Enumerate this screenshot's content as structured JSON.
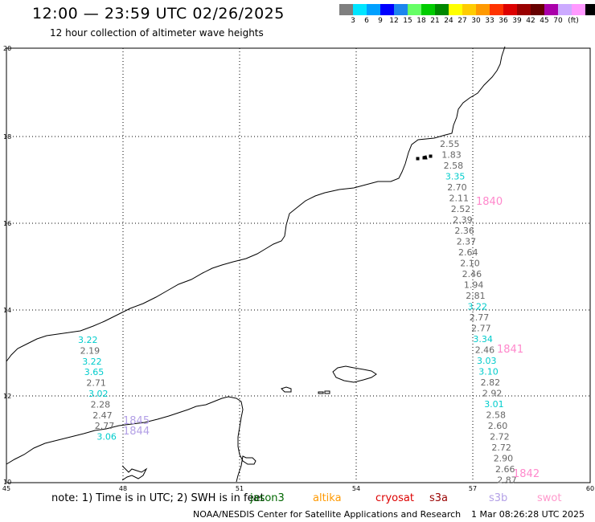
{
  "header": {
    "title": "12:00 — 23:59 UTC 02/26/2025",
    "subtitle": "12 hour collection of altimeter wave heights"
  },
  "colorbar": {
    "colors": [
      "#7f7f7f",
      "#00e5ff",
      "#00a0ff",
      "#0000ff",
      "#1c86ee",
      "#66ff66",
      "#00cc00",
      "#008800",
      "#ffff00",
      "#ffcc00",
      "#ff9900",
      "#ff3300",
      "#dd0000",
      "#990000",
      "#660000",
      "#aa00aa",
      "#ccaaff",
      "#ff99ff",
      "#000000"
    ],
    "labels": [
      "3",
      "6",
      "9",
      "12",
      "15",
      "18",
      "21",
      "24",
      "27",
      "30",
      "33",
      "36",
      "39",
      "42",
      "45",
      "70",
      "(ft)"
    ]
  },
  "axes": {
    "x_ticks": [
      "45",
      "48",
      "51",
      "54",
      "57",
      "60"
    ],
    "y_ticks": [
      "10",
      "12",
      "14",
      "16",
      "18",
      "20"
    ]
  },
  "left_track": {
    "color_map": [
      "#00cccc",
      "#666666",
      "#00cccc",
      "#00cccc",
      "#666666",
      "#00cccc",
      "#666666",
      "#666666",
      "#666666",
      "#00cccc"
    ],
    "values": [
      "3.22",
      "2.19",
      "3.22",
      "3.65",
      "2.71",
      "3.02",
      "2.28",
      "2.47",
      "2.77",
      "3.06"
    ],
    "labels": [
      {
        "text": "1845",
        "color": "#b3a0e6"
      },
      {
        "text": "1844",
        "color": "#b3a0e6"
      }
    ]
  },
  "right_track": {
    "color_map": [
      "#666666",
      "#666666",
      "#666666",
      "#00cccc",
      "#666666",
      "#666666",
      "#666666",
      "#666666",
      "#666666",
      "#666666",
      "#666666",
      "#666666",
      "#666666",
      "#666666",
      "#666666",
      "#00cccc",
      "#666666",
      "#666666",
      "#00cccc",
      "#666666",
      "#00cccc",
      "#00cccc",
      "#666666",
      "#666666",
      "#00cccc",
      "#666666",
      "#666666",
      "#666666",
      "#666666",
      "#666666",
      "#666666",
      "#666666"
    ],
    "values": [
      "2.55",
      "1.83",
      "2.58",
      "3.35",
      "2.70",
      "2.11",
      "2.52",
      "2.39",
      "2.36",
      "2.37",
      "2.64",
      "2.10",
      "2.46",
      "1.94",
      "2.81",
      "3.22",
      "2.77",
      "2.77",
      "3.34",
      "2.46",
      "3.03",
      "3.10",
      "2.82",
      "2.92",
      "3.01",
      "2.58",
      "2.60",
      "2.72",
      "2.72",
      "2.90",
      "2.66",
      "2.87"
    ],
    "labels": [
      {
        "text": "1840",
        "color": "#ff88cc"
      },
      {
        "text": "1841",
        "color": "#ff88cc"
      },
      {
        "text": "1842",
        "color": "#ff88cc"
      }
    ]
  },
  "footer": {
    "note": "note: 1) Time is in UTC; 2) SWH is in feet",
    "satellites": [
      {
        "name": "jason3",
        "color": "#006600"
      },
      {
        "name": "altika",
        "color": "#ff9900"
      },
      {
        "name": "cryosat",
        "color": "#dd0000"
      },
      {
        "name": "s3a",
        "color": "#990000"
      },
      {
        "name": "s3b",
        "color": "#b3a0e6"
      },
      {
        "name": "swot",
        "color": "#ff99cc"
      }
    ],
    "credit": "NOAA/NESDIS Center for Satellite Applications and Research",
    "timestamp": "1 Mar 08:26:28 UTC 2025"
  }
}
